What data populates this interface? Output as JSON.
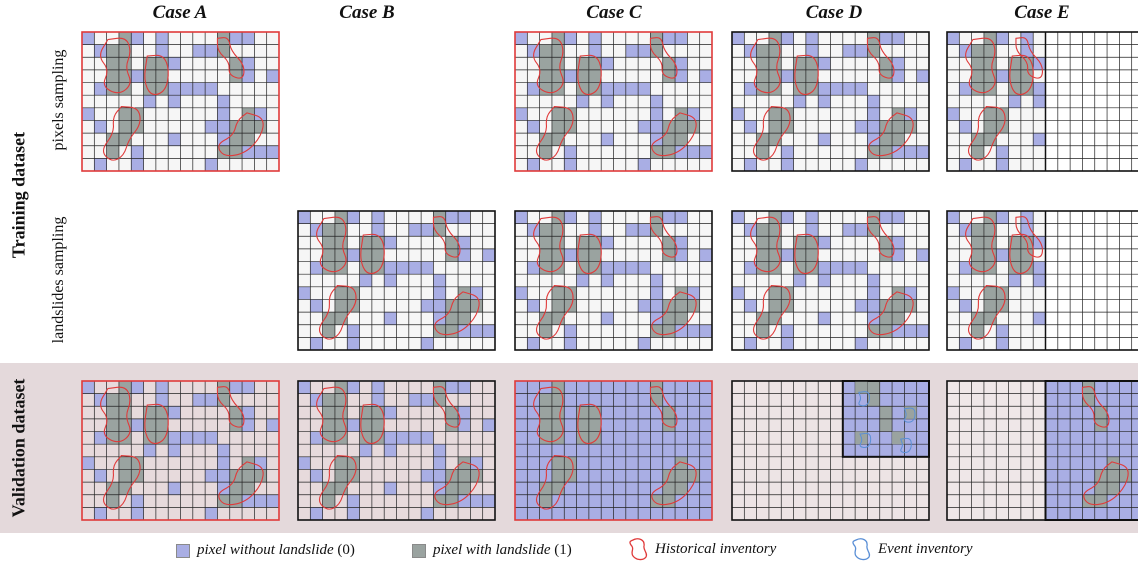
{
  "cases": [
    {
      "id": "A",
      "title": "Case A"
    },
    {
      "id": "B",
      "title": "Case B"
    },
    {
      "id": "C",
      "title": "Case C"
    },
    {
      "id": "D",
      "title": "Case D"
    },
    {
      "id": "E",
      "title": "Case E"
    }
  ],
  "rows": {
    "training": {
      "label": "Training dataset",
      "sub_rows": [
        "pixels sampling",
        "landslides sampling"
      ]
    },
    "validation": {
      "label": "Validation dataset"
    }
  },
  "panels": [
    {
      "case": "A",
      "row": "pixels",
      "variant": "full",
      "border_color": "#e03a3a",
      "red_outlines": [
        1,
        1,
        1,
        1,
        1
      ]
    },
    {
      "case": "C",
      "row": "pixels",
      "variant": "full",
      "border_color": "#e03a3a",
      "red_outlines": [
        1,
        1,
        1,
        1,
        1
      ]
    },
    {
      "case": "D",
      "row": "pixels",
      "variant": "full",
      "border_color": "#111111",
      "red_outlines": [
        1,
        1,
        1,
        1,
        1
      ]
    },
    {
      "case": "E",
      "row": "pixels",
      "variant": "left_half",
      "border_color": "#111111",
      "red_outlines": [
        1,
        1,
        1,
        1
      ]
    },
    {
      "case": "B",
      "row": "landslides",
      "variant": "full",
      "border_color": "#111111",
      "red_outlines": [
        1,
        1,
        1,
        1,
        1
      ]
    },
    {
      "case": "C",
      "row": "landslides",
      "variant": "full",
      "border_color": "#111111",
      "red_outlines": [
        1,
        1,
        1,
        1,
        1
      ]
    },
    {
      "case": "D",
      "row": "landslides",
      "variant": "full",
      "border_color": "#111111",
      "red_outlines": [
        1,
        1,
        1,
        1,
        1
      ]
    },
    {
      "case": "E",
      "row": "landslides",
      "variant": "left_half",
      "border_color": "#111111",
      "red_outlines": [
        1,
        1,
        1,
        1
      ]
    },
    {
      "case": "A",
      "row": "validation",
      "variant": "full",
      "border_color": "#e03a3a",
      "red_outlines": [
        1,
        1,
        1,
        1,
        1
      ]
    },
    {
      "case": "B",
      "row": "validation",
      "variant": "full",
      "border_color": "#111111",
      "red_outlines": [
        1,
        1,
        1,
        1,
        1
      ]
    },
    {
      "case": "C",
      "row": "validation",
      "variant": "all_blue",
      "border_color": "#e03a3a",
      "red_outlines": [
        1,
        1,
        1,
        1,
        1
      ]
    },
    {
      "case": "D",
      "row": "validation",
      "variant": "corner_blue",
      "border_color": "#111111",
      "red_outlines": []
    },
    {
      "case": "E",
      "row": "validation",
      "variant": "right_half_blue",
      "border_color": "#111111",
      "red_outlines": [
        1,
        1
      ]
    }
  ],
  "legend": {
    "without": {
      "label": "pixel without landslide",
      "value": "(0)",
      "color": "#a9aee4"
    },
    "with": {
      "label": "pixel with landslide",
      "value": "(1)",
      "color": "#9aa3a0"
    },
    "historical": {
      "label": "Historical inventory",
      "color": "#e03a3a"
    },
    "event": {
      "label": "Event inventory",
      "color": "#5a8fd6"
    }
  },
  "colors": {
    "blue_pixel": "#a9aee4",
    "grey_pixel": "#9aa3a0",
    "cell_bg_training": "#f6f6f6",
    "validation_band": "#e4d9db",
    "historical": "#e03a3a",
    "event": "#5a8fd6"
  }
}
